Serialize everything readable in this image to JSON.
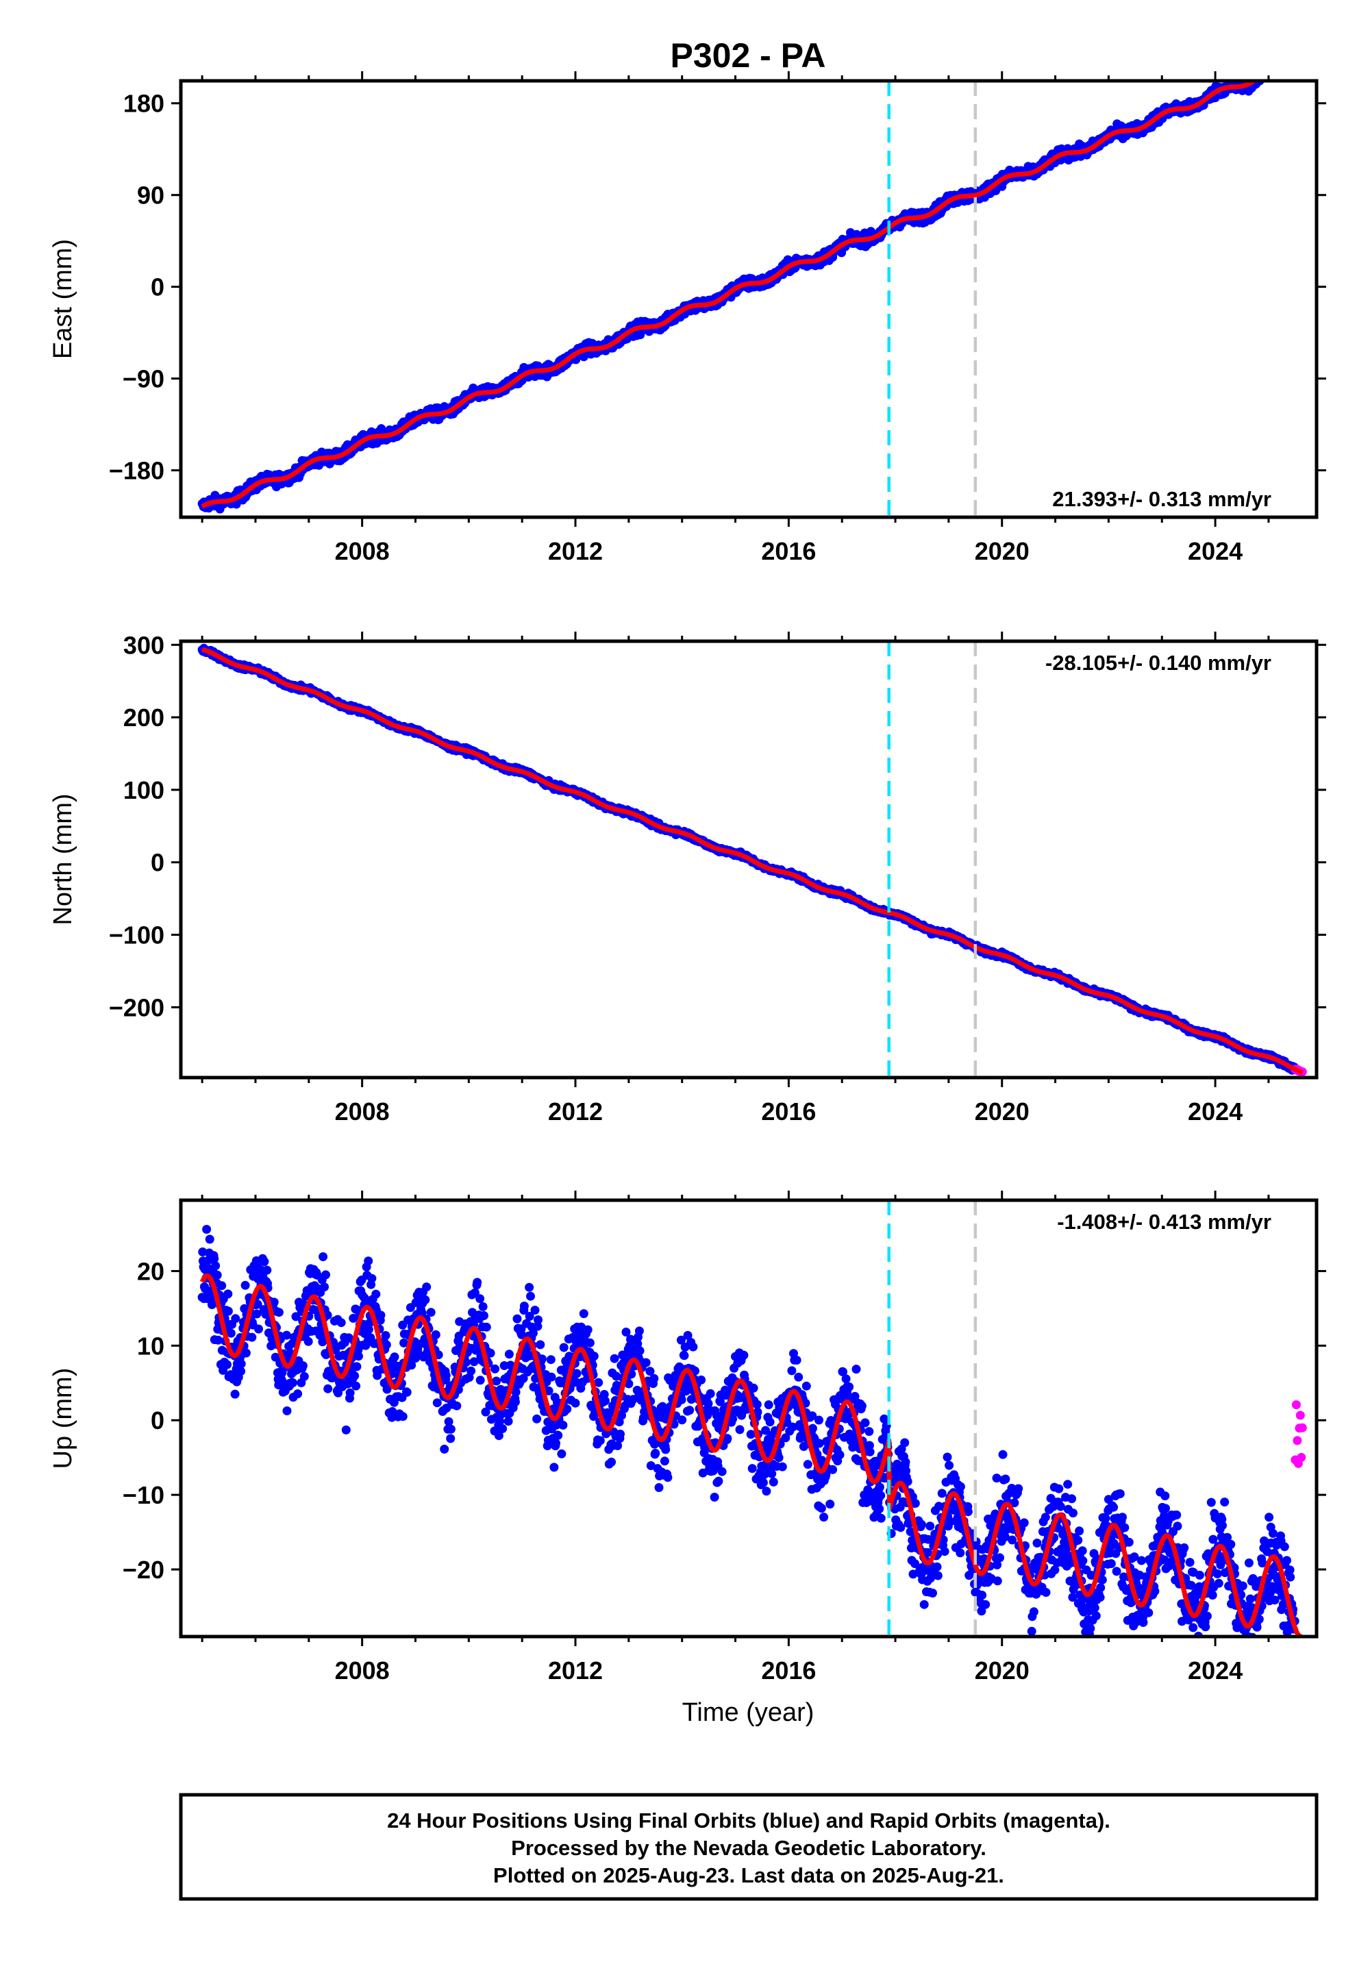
{
  "title": "P302 - PA",
  "colors": {
    "final": "#0000ff",
    "rapid": "#ff00ff",
    "model": "#ff0000",
    "event1": "#00e5ff",
    "event2": "#c8c8c8",
    "frame": "#000000"
  },
  "caption": {
    "line1": "24 Hour Positions Using Final Orbits (blue) and Rapid Orbits (magenta).",
    "line2": "Processed by the Nevada Geodetic Laboratory.",
    "line3": "Plotted on 2025-Aug-23. Last data on 2025-Aug-21."
  },
  "chart_data": [
    {
      "type": "scatter",
      "component": "east",
      "ylabel": "East (mm)",
      "xlim": [
        2004.6,
        2025.9
      ],
      "ylim": [
        -226,
        202
      ],
      "yticks": [
        "180",
        "90",
        "0",
        "−90",
        "−180"
      ],
      "yticks_values": [
        180,
        90,
        0,
        -90,
        -180
      ],
      "xticks": [
        "2008",
        "2012",
        "2016",
        "2020",
        "2024"
      ],
      "xticks_values": [
        2008,
        2012,
        2016,
        2020,
        2024
      ],
      "rate_label": "21.393+/- 0.313 mm/yr",
      "rate_position": "bottom-right",
      "start_year": 2005.0,
      "end_year": 2025.64,
      "y_start": -218,
      "slope": 21.393,
      "seasonal_amp": 3,
      "scatter": 4,
      "rapid_from": 2025.5,
      "events": [
        2017.88,
        2019.5
      ]
    },
    {
      "type": "scatter",
      "component": "north",
      "ylabel": "North (mm)",
      "xlim": [
        2004.6,
        2025.9
      ],
      "ylim": [
        -297,
        305
      ],
      "yticks": [
        "300",
        "200",
        "100",
        "0",
        "−100",
        "−200"
      ],
      "yticks_values": [
        300,
        200,
        100,
        0,
        -100,
        -200
      ],
      "xticks": [
        "2008",
        "2012",
        "2016",
        "2020",
        "2024"
      ],
      "xticks_values": [
        2008,
        2012,
        2016,
        2020,
        2024
      ],
      "rate_label": "-28.105+/- 0.140 mm/yr",
      "rate_position": "top-right",
      "start_year": 2005.0,
      "end_year": 2025.64,
      "y_start": 292,
      "slope": -28.105,
      "seasonal_amp": 2,
      "scatter": 2.5,
      "rapid_from": 2025.5,
      "events": [
        2017.88,
        2019.5
      ]
    },
    {
      "type": "scatter",
      "component": "up",
      "ylabel": "Up (mm)",
      "xlabel": "Time (year)",
      "xlim": [
        2004.6,
        2025.9
      ],
      "ylim": [
        -29,
        29.5
      ],
      "yticks": [
        "20",
        "10",
        "0",
        "−10",
        "−20"
      ],
      "yticks_values": [
        20,
        10,
        0,
        -10,
        -20
      ],
      "xticks": [
        "2008",
        "2012",
        "2016",
        "2020",
        "2024"
      ],
      "xticks_values": [
        2008,
        2012,
        2016,
        2020,
        2024
      ],
      "rate_label": "-1.408+/- 0.413 mm/yr",
      "rate_position": "top-right",
      "start_year": 2005.0,
      "end_year": 2025.64,
      "y_start": 14.5,
      "slope": -1.408,
      "offset": {
        "year": 2017.88,
        "value": -9.5
      },
      "seasonal_amp": 5,
      "scatter": 4.2,
      "rapid_from": 2025.5,
      "rapid_range": [
        -9,
        3.5
      ],
      "events": [
        2017.88,
        2019.5
      ]
    }
  ]
}
